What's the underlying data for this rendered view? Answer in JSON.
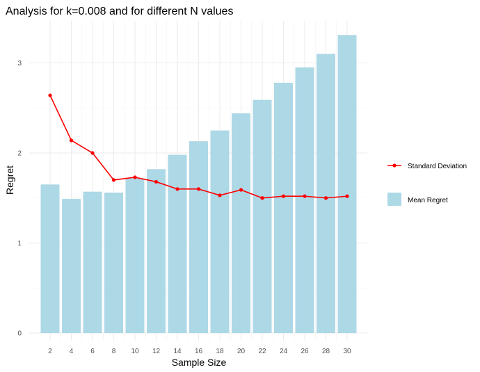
{
  "chart_data": {
    "type": "bar",
    "title": "Analysis for k=0.008 and for different N values",
    "xlabel": "Sample Size",
    "ylabel": "Regret",
    "categories": [
      "2",
      "4",
      "6",
      "8",
      "10",
      "12",
      "14",
      "16",
      "18",
      "20",
      "22",
      "24",
      "26",
      "28",
      "30"
    ],
    "ylim": [
      0,
      3.32
    ],
    "yticks": [
      "0",
      "1",
      "2",
      "3"
    ],
    "grid": true,
    "legend_position": "right",
    "series": [
      {
        "name": "Mean Regret",
        "kind": "bar",
        "color": "#add8e6",
        "values": [
          1.65,
          1.49,
          1.57,
          1.56,
          1.72,
          1.82,
          1.98,
          2.13,
          2.25,
          2.44,
          2.59,
          2.78,
          2.95,
          3.1,
          3.31
        ]
      },
      {
        "name": "Standard Deviation",
        "kind": "line",
        "color": "#ff0000",
        "values": [
          2.64,
          2.14,
          2.0,
          1.7,
          1.73,
          1.68,
          1.6,
          1.6,
          1.53,
          1.59,
          1.5,
          1.52,
          1.52,
          1.5,
          1.52
        ]
      }
    ]
  }
}
